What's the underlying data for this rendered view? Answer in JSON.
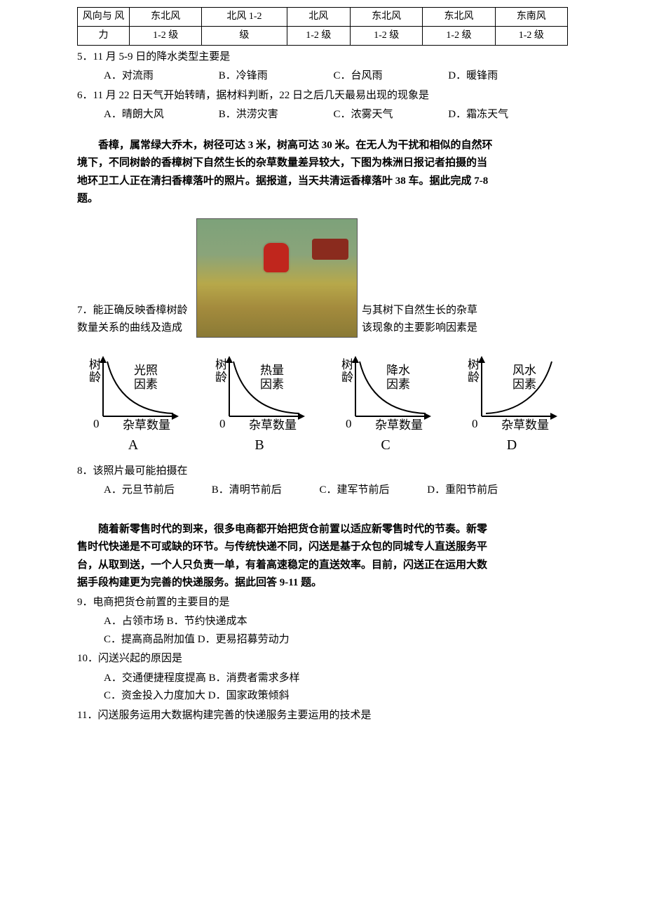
{
  "weather_table": {
    "row_header": [
      "风向与 风",
      "力"
    ],
    "cells": [
      [
        "东北风",
        "1-2 级"
      ],
      [
        "北风   1-2",
        "级"
      ],
      [
        "北风",
        "1-2 级"
      ],
      [
        "东北风",
        "1-2 级"
      ],
      [
        "东北风",
        "1-2 级"
      ],
      [
        "东南风",
        "1-2 级"
      ]
    ]
  },
  "q5": {
    "stem": "5．11 月 5-9 日的降水类型主要是",
    "opts": {
      "A": "A．对流雨",
      "B": "B．冷锋雨",
      "C": "C．台风雨",
      "D": "D．暖锋雨"
    }
  },
  "q6": {
    "stem": "6．11 月 22 日天气开始转晴，据材料判断，22 日之后几天最易出现的现象是",
    "opts": {
      "A": "A．晴朗大风",
      "B": "B．洪涝灾害",
      "C": "C．浓雾天气",
      "D": "D．霜冻天气"
    }
  },
  "passage1": {
    "p1": "香樟，属常绿大乔木，树径可达 3 米，树高可达 30 米。在无人为干扰和相似的自然环",
    "p2": "境下，不同树龄的香樟树下自然生长的杂草数量差异较大，下图为株洲日报记者拍摄的当",
    "p3": "地环卫工人正在清扫香樟落叶的照片。据报道，当天共清运香樟落叶 38 车。据此完成 7-8",
    "p4": "题。"
  },
  "q7": {
    "left1": "7．能正确反映香樟树龄",
    "left2": "数量关系的曲线及造成",
    "right1": "与其树下自然生长的杂草",
    "right2": "该现象的主要影响因素是"
  },
  "curves": {
    "ylabel": "树龄",
    "xlabel": "杂草数量",
    "items": [
      {
        "letter": "A",
        "factor": "光照\n因素",
        "dir": "down"
      },
      {
        "letter": "B",
        "factor": "热量\n因素",
        "dir": "down"
      },
      {
        "letter": "C",
        "factor": "降水\n因素",
        "dir": "down"
      },
      {
        "letter": "D",
        "factor": "风水\n因素",
        "dir": "up"
      }
    ],
    "colors": {
      "axis": "#000",
      "curve": "#000",
      "bg": "#ffffff"
    },
    "line_width": 2
  },
  "q8": {
    "stem": "8．该照片最可能拍摄在",
    "opts": {
      "A": "A．元旦节前后",
      "B": "B．清明节前后",
      "C": "C．建军节前后",
      "D": "D．重阳节前后"
    }
  },
  "passage2": {
    "p1": "随着新零售时代的到来，很多电商都开始把货仓前置以适应新零售时代的节奏。新零",
    "p2": "售时代快递是不可或缺的环节。与传统快递不同，闪送是基于众包的同城专人直送服务平",
    "p3": "台，从取到送，一个人只负责一单，有着高速稳定的直送效率。目前，闪送正在运用大数",
    "p4": "据手段构建更为完善的快递服务。据此回答 9-11 题。"
  },
  "q9": {
    "stem": "9．电商把货仓前置的主要目的是",
    "opts": {
      "A": "A．占领市场",
      "B": "B．节约快递成本",
      "C": "C．提高商品附加值",
      "D": "D．更易招募劳动力"
    }
  },
  "q10": {
    "stem": "10．闪送兴起的原因是",
    "opts": {
      "A": "A．交通便捷程度提高",
      "B": "B．消费者需求多样",
      "C": "C．资金投入力度加大",
      "D": "D．国家政策倾斜"
    }
  },
  "q11": {
    "stem": "11．闪送服务运用大数据构建完善的快递服务主要运用的技术是"
  }
}
